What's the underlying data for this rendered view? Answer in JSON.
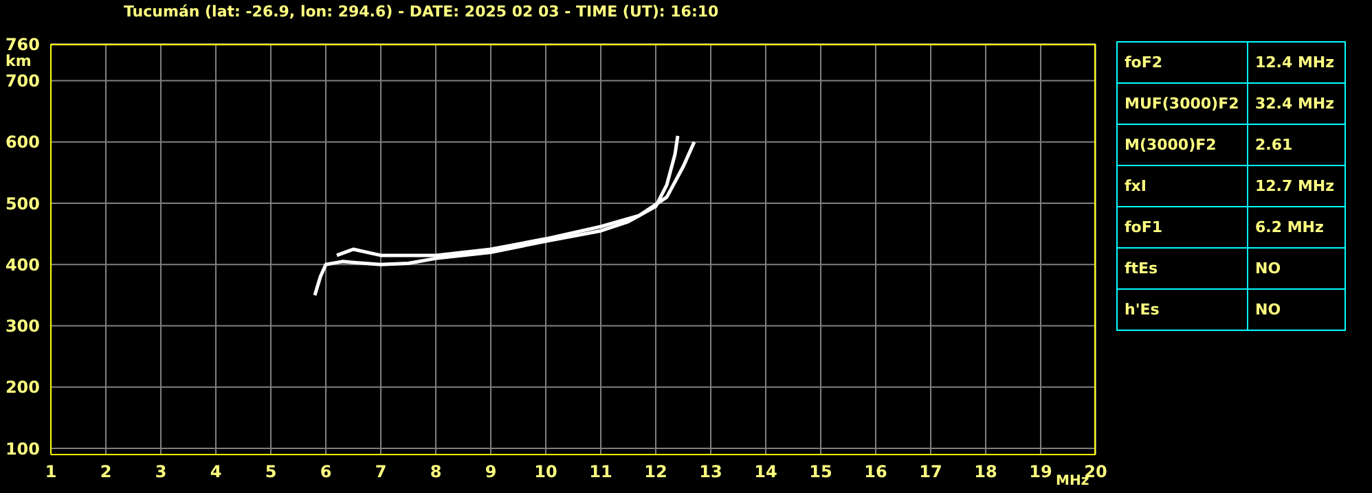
{
  "chart_data": {
    "type": "line",
    "title": "Tucumán (lat: -26.9, lon: 294.6) - DATE: 2025 02 03 - TIME (UT): 16:10",
    "xlabel": "MHz",
    "ylabel": "km",
    "xlim": [
      1,
      20
    ],
    "xticks": [
      1,
      2,
      3,
      4,
      5,
      6,
      7,
      8,
      9,
      10,
      11,
      12,
      13,
      14,
      15,
      16,
      17,
      18,
      19,
      20
    ],
    "ylim": [
      90,
      760
    ],
    "yticks": [
      100,
      200,
      300,
      400,
      500,
      600,
      700,
      760
    ],
    "grid": true,
    "marker": "none",
    "line_style": "solid",
    "series": [
      {
        "color": "#ffffff",
        "x": [
          5.8,
          5.9,
          6.0,
          6.3,
          7.0,
          7.5,
          8.0,
          9.0,
          10.0,
          11.0,
          11.5,
          12.0,
          12.2,
          12.35,
          12.4
        ],
        "values": [
          350,
          380,
          400,
          405,
          400,
          402,
          410,
          420,
          438,
          455,
          470,
          495,
          530,
          580,
          610
        ]
      },
      {
        "color": "#ffffff",
        "x": [
          6.2,
          6.5,
          7.0,
          8.0,
          9.0,
          10.0,
          11.0,
          11.7,
          12.2,
          12.5,
          12.7
        ],
        "values": [
          415,
          425,
          415,
          415,
          425,
          442,
          462,
          480,
          510,
          560,
          600
        ]
      }
    ],
    "annotations": [
      "foF2",
      "12.4 MHz",
      "MUF(3000)F2",
      "32.4 MHz",
      "M(3000)F2",
      "2.61",
      "fxI",
      "12.7 MHz",
      "foF1",
      "6.2 MHz",
      "ftEs",
      "NO",
      "h'Es",
      "NO"
    ]
  }
}
